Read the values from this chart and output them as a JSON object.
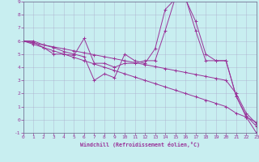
{
  "xlabel": "Windchill (Refroidissement éolien,°C)",
  "xlim": [
    0,
    23
  ],
  "ylim": [
    -1,
    9
  ],
  "xticks": [
    0,
    1,
    2,
    3,
    4,
    5,
    6,
    7,
    8,
    9,
    10,
    11,
    12,
    13,
    14,
    15,
    16,
    17,
    18,
    19,
    20,
    21,
    22,
    23
  ],
  "yticks": [
    -1,
    0,
    1,
    2,
    3,
    4,
    5,
    6,
    7,
    8,
    9
  ],
  "bg_color": "#c8eef0",
  "grid_color": "#aaaacc",
  "line_color": "#993399",
  "spine_color": "#666688",
  "series": [
    [
      [
        0,
        6.0
      ],
      [
        1,
        6.0
      ],
      [
        2,
        5.7
      ],
      [
        3,
        5.5
      ],
      [
        4,
        5.2
      ],
      [
        5,
        5.0
      ],
      [
        6,
        4.8
      ],
      [
        7,
        3.0
      ],
      [
        8,
        3.5
      ],
      [
        9,
        3.2
      ],
      [
        10,
        5.0
      ],
      [
        11,
        4.5
      ],
      [
        12,
        4.3
      ],
      [
        13,
        5.4
      ],
      [
        14,
        8.4
      ],
      [
        15,
        9.2
      ],
      [
        16,
        9.2
      ],
      [
        17,
        7.5
      ],
      [
        18,
        5.0
      ],
      [
        19,
        4.5
      ],
      [
        20,
        4.5
      ],
      [
        21,
        1.8
      ],
      [
        22,
        0.3
      ],
      [
        23,
        -0.5
      ]
    ],
    [
      [
        0,
        6.0
      ],
      [
        1,
        5.9
      ],
      [
        2,
        5.5
      ],
      [
        3,
        5.0
      ],
      [
        4,
        5.0
      ],
      [
        5,
        4.9
      ],
      [
        6,
        6.2
      ],
      [
        7,
        4.3
      ],
      [
        8,
        4.3
      ],
      [
        9,
        4.0
      ],
      [
        10,
        4.3
      ],
      [
        11,
        4.3
      ],
      [
        12,
        4.5
      ],
      [
        13,
        4.5
      ],
      [
        14,
        6.8
      ],
      [
        15,
        9.3
      ],
      [
        16,
        9.3
      ],
      [
        17,
        6.8
      ],
      [
        18,
        4.5
      ],
      [
        19,
        4.5
      ],
      [
        20,
        4.5
      ],
      [
        21,
        1.8
      ],
      [
        22,
        0.2
      ],
      [
        23,
        -1.0
      ]
    ],
    [
      [
        0,
        6.0
      ],
      [
        1,
        5.85
      ],
      [
        2,
        5.7
      ],
      [
        3,
        5.55
      ],
      [
        4,
        5.4
      ],
      [
        5,
        5.25
      ],
      [
        6,
        5.1
      ],
      [
        7,
        4.95
      ],
      [
        8,
        4.8
      ],
      [
        9,
        4.65
      ],
      [
        10,
        4.5
      ],
      [
        11,
        4.35
      ],
      [
        12,
        4.2
      ],
      [
        13,
        4.05
      ],
      [
        14,
        3.9
      ],
      [
        15,
        3.75
      ],
      [
        16,
        3.6
      ],
      [
        17,
        3.45
      ],
      [
        18,
        3.3
      ],
      [
        19,
        3.15
      ],
      [
        20,
        3.0
      ],
      [
        21,
        2.0
      ],
      [
        22,
        0.5
      ],
      [
        23,
        -0.3
      ]
    ],
    [
      [
        0,
        6.0
      ],
      [
        1,
        5.75
      ],
      [
        2,
        5.5
      ],
      [
        3,
        5.25
      ],
      [
        4,
        5.0
      ],
      [
        5,
        4.75
      ],
      [
        6,
        4.5
      ],
      [
        7,
        4.25
      ],
      [
        8,
        4.0
      ],
      [
        9,
        3.75
      ],
      [
        10,
        3.5
      ],
      [
        11,
        3.25
      ],
      [
        12,
        3.0
      ],
      [
        13,
        2.75
      ],
      [
        14,
        2.5
      ],
      [
        15,
        2.25
      ],
      [
        16,
        2.0
      ],
      [
        17,
        1.75
      ],
      [
        18,
        1.5
      ],
      [
        19,
        1.25
      ],
      [
        20,
        1.0
      ],
      [
        21,
        0.5
      ],
      [
        22,
        0.2
      ],
      [
        23,
        -0.2
      ]
    ]
  ]
}
